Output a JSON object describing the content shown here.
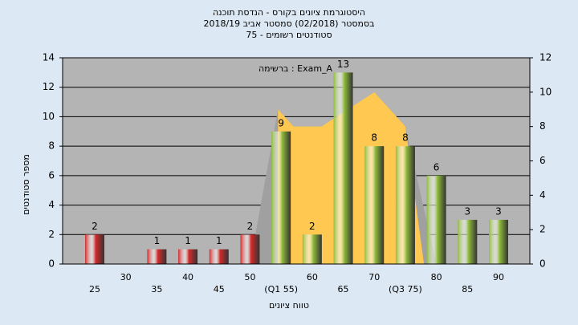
{
  "chart_data": {
    "type": "bar",
    "title": [
      "היסטוגרמת ציונים בקורס - הנדסת תוכנה",
      "בסמסטר  (02/2018)  סמסטר אביב 2018/19",
      "סטודנטים רשומים - 75"
    ],
    "annotation": "ברשימה : Exam_A",
    "x_label": "טווח ציונים",
    "y_label": "מספר סטודנטים",
    "categories": [
      "25",
      "30",
      "35",
      "40",
      "45",
      "50",
      "(Q1 55)",
      "60",
      "65",
      "70",
      "(Q3 75)",
      "80",
      "85",
      "90"
    ],
    "category_values": [
      25,
      30,
      35,
      40,
      45,
      50,
      55,
      60,
      65,
      70,
      75,
      80,
      85,
      90
    ],
    "values": [
      2,
      0,
      1,
      1,
      1,
      2,
      9,
      2,
      13,
      8,
      8,
      6,
      3,
      3
    ],
    "colors": [
      "#d42a2a",
      "#d42a2a",
      "#d42a2a",
      "#d42a2a",
      "#d42a2a",
      "#d42a2a",
      "#8fbc3a",
      "#8fbc3a",
      "#8fbc3a",
      "#8fbc3a",
      "#8fbc3a",
      "#8fbc3a",
      "#8fbc3a",
      "#8fbc3a"
    ],
    "ylim": [
      0,
      14
    ],
    "yticks": [
      0,
      2,
      4,
      6,
      8,
      10,
      12,
      14
    ],
    "y2lim": [
      0,
      12
    ],
    "y2ticks": [
      0,
      2,
      4,
      6,
      8,
      10,
      12
    ],
    "areas": [
      {
        "color": "#a0a0a0",
        "axis": "y2",
        "x": [
          50,
          54.5,
          57,
          61.5,
          70,
          75,
          80
        ],
        "values": [
          0,
          9,
          8,
          8,
          10,
          8,
          0
        ]
      },
      {
        "color": "#ffc850",
        "axis": "y2",
        "x": [
          54.5,
          54.5,
          57,
          61.5,
          70,
          75,
          78
        ],
        "values": [
          0,
          9,
          8,
          8,
          10,
          8,
          0
        ]
      }
    ],
    "grid": true
  }
}
